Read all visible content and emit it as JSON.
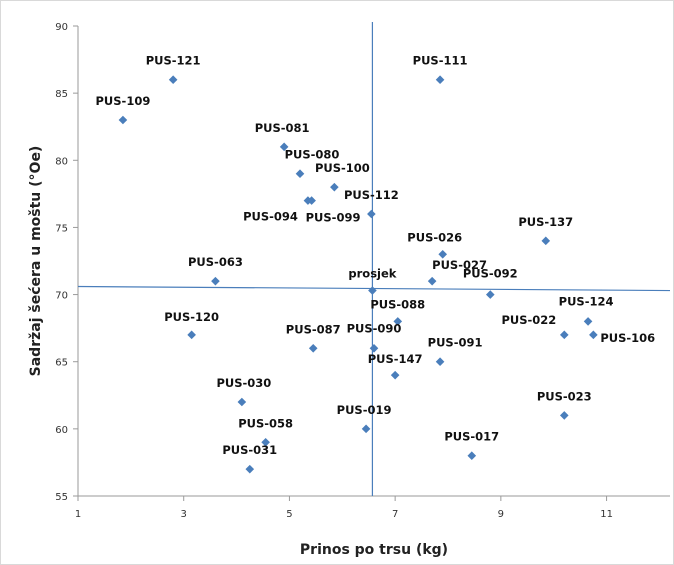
{
  "chart_data": {
    "type": "scatter",
    "title": "",
    "xlabel": "Prinos po trsu (kg)",
    "ylabel": "Sadržaj šećera u moštu (°Oe)",
    "xlim": [
      1,
      12.2
    ],
    "ylim": [
      55,
      90
    ],
    "xticks": [
      1,
      3,
      5,
      7,
      9,
      11
    ],
    "yticks": [
      55,
      60,
      65,
      70,
      75,
      80,
      85,
      90
    ],
    "grid": false,
    "legend": "none",
    "marker_color": "#4a7ebb",
    "reference_line_color": "#4a7ebb",
    "reference_lines": {
      "vertical_x": 6.57,
      "horizontal_y_left": 70.6,
      "horizontal_y_right": 70.3
    },
    "points": [
      {
        "label": "PUS-121",
        "x": 2.8,
        "y": 86
      },
      {
        "label": "PUS-111",
        "x": 7.85,
        "y": 86
      },
      {
        "label": "PUS-109",
        "x": 1.85,
        "y": 83
      },
      {
        "label": "PUS-081",
        "x": 4.9,
        "y": 81
      },
      {
        "label": "PUS-080",
        "x": 5.2,
        "y": 79
      },
      {
        "label": "PUS-100",
        "x": 5.85,
        "y": 78
      },
      {
        "label": "PUS-094",
        "x": 5.35,
        "y": 77
      },
      {
        "label": "PUS-099",
        "x": 5.42,
        "y": 77
      },
      {
        "label": "PUS-112",
        "x": 6.55,
        "y": 76
      },
      {
        "label": "PUS-137",
        "x": 9.85,
        "y": 74
      },
      {
        "label": "PUS-026",
        "x": 7.9,
        "y": 73
      },
      {
        "label": "PUS-063",
        "x": 3.6,
        "y": 71
      },
      {
        "label": "PUS-027",
        "x": 7.7,
        "y": 71
      },
      {
        "label": "PUS-092",
        "x": 8.8,
        "y": 70
      },
      {
        "label": "prosjek",
        "x": 6.57,
        "y": 70.3
      },
      {
        "label": "PUS-124",
        "x": 10.65,
        "y": 68
      },
      {
        "label": "PUS-088",
        "x": 7.05,
        "y": 68
      },
      {
        "label": "PUS-120",
        "x": 3.15,
        "y": 67
      },
      {
        "label": "PUS-022",
        "x": 10.2,
        "y": 67
      },
      {
        "label": "PUS-106",
        "x": 10.75,
        "y": 67
      },
      {
        "label": "PUS-087",
        "x": 5.45,
        "y": 66
      },
      {
        "label": "PUS-090",
        "x": 6.6,
        "y": 66
      },
      {
        "label": "PUS-091",
        "x": 7.85,
        "y": 65
      },
      {
        "label": "PUS-147",
        "x": 7.0,
        "y": 64
      },
      {
        "label": "PUS-030",
        "x": 4.1,
        "y": 62
      },
      {
        "label": "PUS-023",
        "x": 10.2,
        "y": 61
      },
      {
        "label": "PUS-019",
        "x": 6.45,
        "y": 60
      },
      {
        "label": "PUS-058",
        "x": 4.55,
        "y": 59
      },
      {
        "label": "PUS-017",
        "x": 8.45,
        "y": 58
      },
      {
        "label": "PUS-031",
        "x": 4.25,
        "y": 57
      }
    ]
  }
}
